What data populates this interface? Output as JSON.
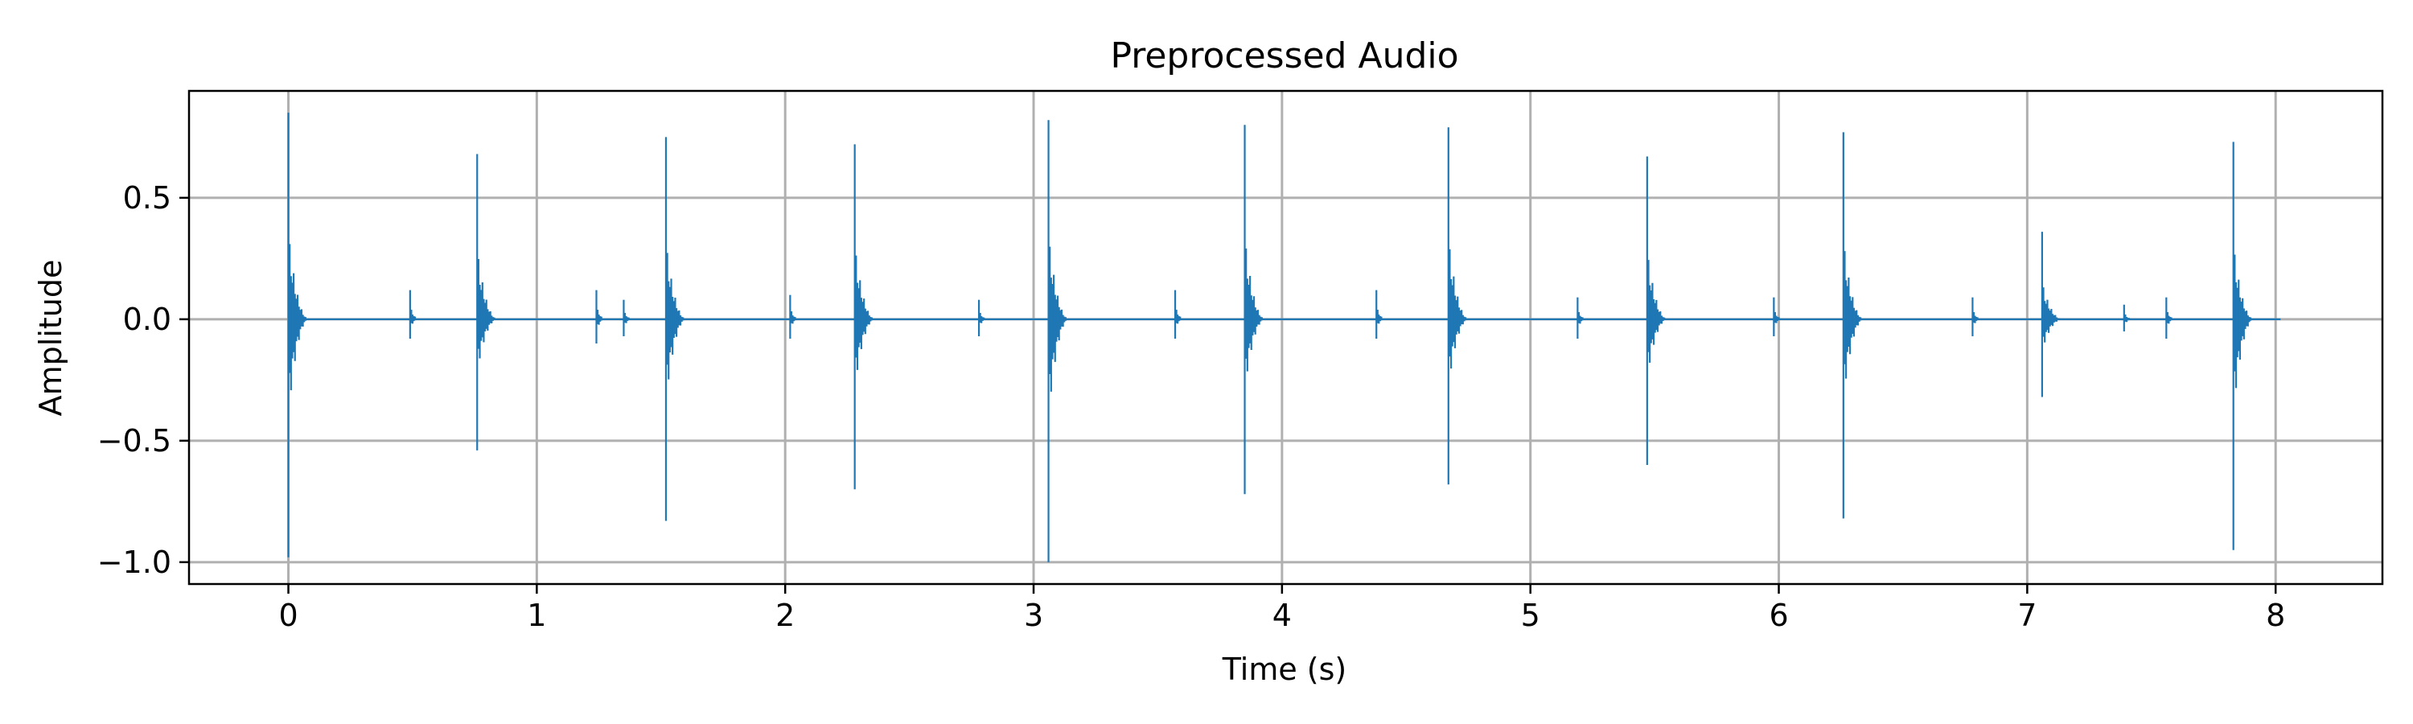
{
  "chart_data": {
    "type": "line",
    "title": "Preprocessed Audio",
    "xlabel": "Time (s)",
    "ylabel": "Amplitude",
    "xlim": [
      -0.4,
      8.43
    ],
    "ylim": [
      -1.09,
      0.94
    ],
    "x_ticks": [
      {
        "value": 0,
        "label": "0"
      },
      {
        "value": 1,
        "label": "1"
      },
      {
        "value": 2,
        "label": "2"
      },
      {
        "value": 3,
        "label": "3"
      },
      {
        "value": 4,
        "label": "4"
      },
      {
        "value": 5,
        "label": "5"
      },
      {
        "value": 6,
        "label": "6"
      },
      {
        "value": 7,
        "label": "7"
      },
      {
        "value": 8,
        "label": "8"
      }
    ],
    "y_ticks": [
      {
        "value": 0.5,
        "label": "0.5"
      },
      {
        "value": 0.0,
        "label": "0.0"
      },
      {
        "value": -0.5,
        "label": "−0.5"
      },
      {
        "value": -1.0,
        "label": "−1.0"
      }
    ],
    "grid": true,
    "line_color": "#1f77b4",
    "signal_duration": 8.02,
    "series": [
      {
        "values_peak": [
          {
            "t": 0.0,
            "max": 0.85,
            "min": -0.98
          },
          {
            "t": 0.49,
            "max": 0.12,
            "min": -0.08
          },
          {
            "t": 0.76,
            "max": 0.68,
            "min": -0.54
          },
          {
            "t": 1.24,
            "max": 0.12,
            "min": -0.1
          },
          {
            "t": 1.35,
            "max": 0.08,
            "min": -0.07
          },
          {
            "t": 1.52,
            "max": 0.75,
            "min": -0.83
          },
          {
            "t": 2.02,
            "max": 0.1,
            "min": -0.08
          },
          {
            "t": 2.28,
            "max": 0.72,
            "min": -0.7
          },
          {
            "t": 2.78,
            "max": 0.08,
            "min": -0.07
          },
          {
            "t": 3.06,
            "max": 0.82,
            "min": -1.0
          },
          {
            "t": 3.57,
            "max": 0.12,
            "min": -0.08
          },
          {
            "t": 3.85,
            "max": 0.8,
            "min": -0.72
          },
          {
            "t": 4.38,
            "max": 0.12,
            "min": -0.08
          },
          {
            "t": 4.67,
            "max": 0.79,
            "min": -0.68
          },
          {
            "t": 5.19,
            "max": 0.09,
            "min": -0.08
          },
          {
            "t": 5.47,
            "max": 0.67,
            "min": -0.6
          },
          {
            "t": 5.98,
            "max": 0.09,
            "min": -0.07
          },
          {
            "t": 6.26,
            "max": 0.77,
            "min": -0.82
          },
          {
            "t": 6.78,
            "max": 0.09,
            "min": -0.07
          },
          {
            "t": 7.06,
            "max": 0.36,
            "min": -0.32
          },
          {
            "t": 7.39,
            "max": 0.06,
            "min": -0.05
          },
          {
            "t": 7.56,
            "max": 0.09,
            "min": -0.08
          },
          {
            "t": 7.83,
            "max": 0.73,
            "min": -0.95
          }
        ]
      }
    ]
  }
}
